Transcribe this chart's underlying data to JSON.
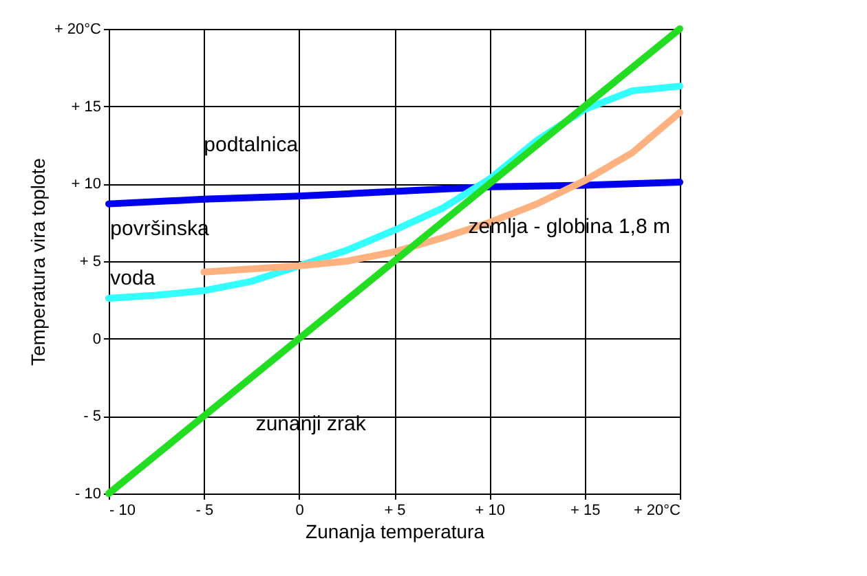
{
  "chart_data": {
    "type": "line",
    "xlabel": "Zunanja temperatura",
    "ylabel": "Temperatura vira toplote",
    "xlim": [
      -10,
      20
    ],
    "ylim": [
      -10,
      20
    ],
    "xticks": [
      {
        "value": -10,
        "label": "- 10"
      },
      {
        "value": -5,
        "label": "- 5"
      },
      0,
      {
        "value": 5,
        "label": "+ 5"
      },
      {
        "value": 10,
        "label": "+ 10"
      },
      {
        "value": 15,
        "label": "+ 15"
      },
      {
        "value": 20,
        "label": "+ 20°C"
      }
    ],
    "yticks": [
      {
        "value": -10,
        "label": "- 10"
      },
      {
        "value": -5,
        "label": "- 5"
      },
      0,
      {
        "value": 5,
        "label": "+ 5"
      },
      {
        "value": 10,
        "label": "+ 10"
      },
      {
        "value": 15,
        "label": "+ 15"
      },
      {
        "value": 20,
        "label": "+ 20°C"
      }
    ],
    "grid": true,
    "marker": "none",
    "line_style": "solid",
    "series": [
      {
        "color": "#0000ee",
        "x": [
          -10,
          -5,
          0,
          5,
          10,
          15,
          20
        ],
        "values": [
          8.7,
          9.0,
          9.2,
          9.5,
          9.8,
          9.9,
          10.1
        ]
      },
      {
        "color": "#33ffff",
        "x": [
          -10,
          -7.5,
          -5,
          -2.5,
          0,
          2.5,
          5,
          7.5,
          10,
          12.5,
          15,
          17.5,
          20
        ],
        "values": [
          2.6,
          2.8,
          3.1,
          3.7,
          4.7,
          5.7,
          7.0,
          8.4,
          10.3,
          12.8,
          14.8,
          16.0,
          16.3
        ]
      },
      {
        "color": "#ffb27f",
        "x": [
          -5,
          -2.5,
          0,
          2.5,
          5,
          7.5,
          10,
          12.5,
          15,
          17.5,
          20
        ],
        "values": [
          4.3,
          4.5,
          4.7,
          5.0,
          5.6,
          6.5,
          7.5,
          8.7,
          10.2,
          12.0,
          14.6
        ]
      },
      {
        "color": "#22dd22",
        "x": [
          -10,
          20
        ],
        "values": [
          -10,
          20
        ]
      }
    ],
    "annotations": [
      {
        "text": "podtalnica",
        "x": -5,
        "y": 9.0
      },
      {
        "text": "površinska",
        "x": -5,
        "y": 4.3
      },
      {
        "text": "voda",
        "x": -5,
        "y": 4.3
      },
      {
        "text": "zemlja - globina 1,8 m",
        "x": 12.5,
        "y": 8.7
      },
      {
        "text": "zunanji zrak",
        "x": -3,
        "y": -3
      }
    ]
  }
}
